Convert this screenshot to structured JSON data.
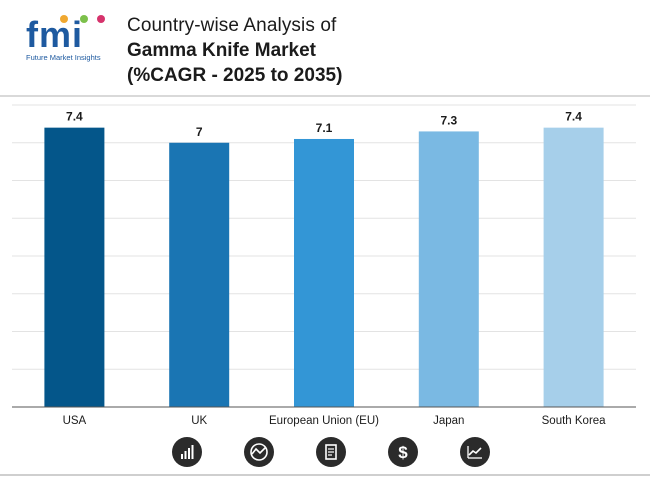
{
  "header": {
    "logo_text": "fmi",
    "logo_subtitle": "Future Market Insights",
    "title_line1": "Country-wise Analysis of",
    "title_line2": "Gamma Knife Market",
    "title_line3": "(%CAGR - 2025 to 2035)"
  },
  "colors": {
    "bar_colors": [
      "#04568a",
      "#1a75b3",
      "#3396d6",
      "#7ab9e3",
      "#a6cfea"
    ],
    "grid": "#e3e3e3",
    "axis": "#555555"
  },
  "chart_data": {
    "type": "bar",
    "title": "Gamma Knife Market (%CAGR - 2025 to 2035)",
    "categories": [
      "USA",
      "UK",
      "European Union (EU)",
      "Japan",
      "South Korea"
    ],
    "values": [
      7.4,
      7,
      7.1,
      7.3,
      7.4
    ],
    "value_labels": [
      "7.4",
      "7",
      "7.1",
      "7.3",
      "7.4"
    ],
    "xlabel": "",
    "ylabel": "",
    "ylim": [
      0,
      8
    ],
    "grid": true,
    "legend": "none"
  },
  "footer_icons": [
    "bar-growth-icon",
    "globe-chart-icon",
    "document-icon",
    "dollar-icon",
    "line-trend-icon"
  ]
}
